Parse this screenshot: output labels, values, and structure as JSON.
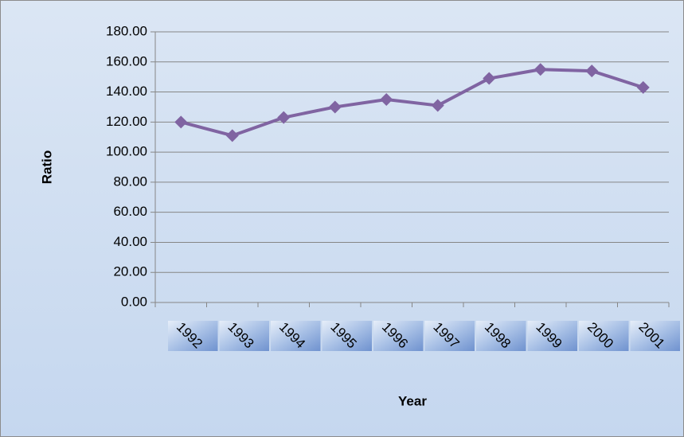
{
  "chart_data": {
    "type": "line",
    "x_label": "Year",
    "y_label": "Ratio",
    "categories": [
      "1992",
      "1993",
      "1994",
      "1995",
      "1996",
      "1997",
      "1998",
      "1999",
      "2000",
      "2001"
    ],
    "series": [
      {
        "name": "Ratio",
        "color": "#8064a2",
        "values": [
          120,
          111,
          123,
          130,
          135,
          131,
          149,
          155,
          154,
          143
        ]
      }
    ],
    "ylim": [
      0,
      180
    ],
    "yticks": [
      {
        "value": 0,
        "label": "0.00"
      },
      {
        "value": 20,
        "label": "20.00"
      },
      {
        "value": 40,
        "label": "40.00"
      },
      {
        "value": 60,
        "label": "60.00"
      },
      {
        "value": 80,
        "label": "80.00"
      },
      {
        "value": 100,
        "label": "100.00"
      },
      {
        "value": 120,
        "label": "120.00"
      },
      {
        "value": 140,
        "label": "140.00"
      },
      {
        "value": 160,
        "label": "160.00"
      },
      {
        "value": 180,
        "label": "180.00"
      }
    ],
    "grid": true
  }
}
